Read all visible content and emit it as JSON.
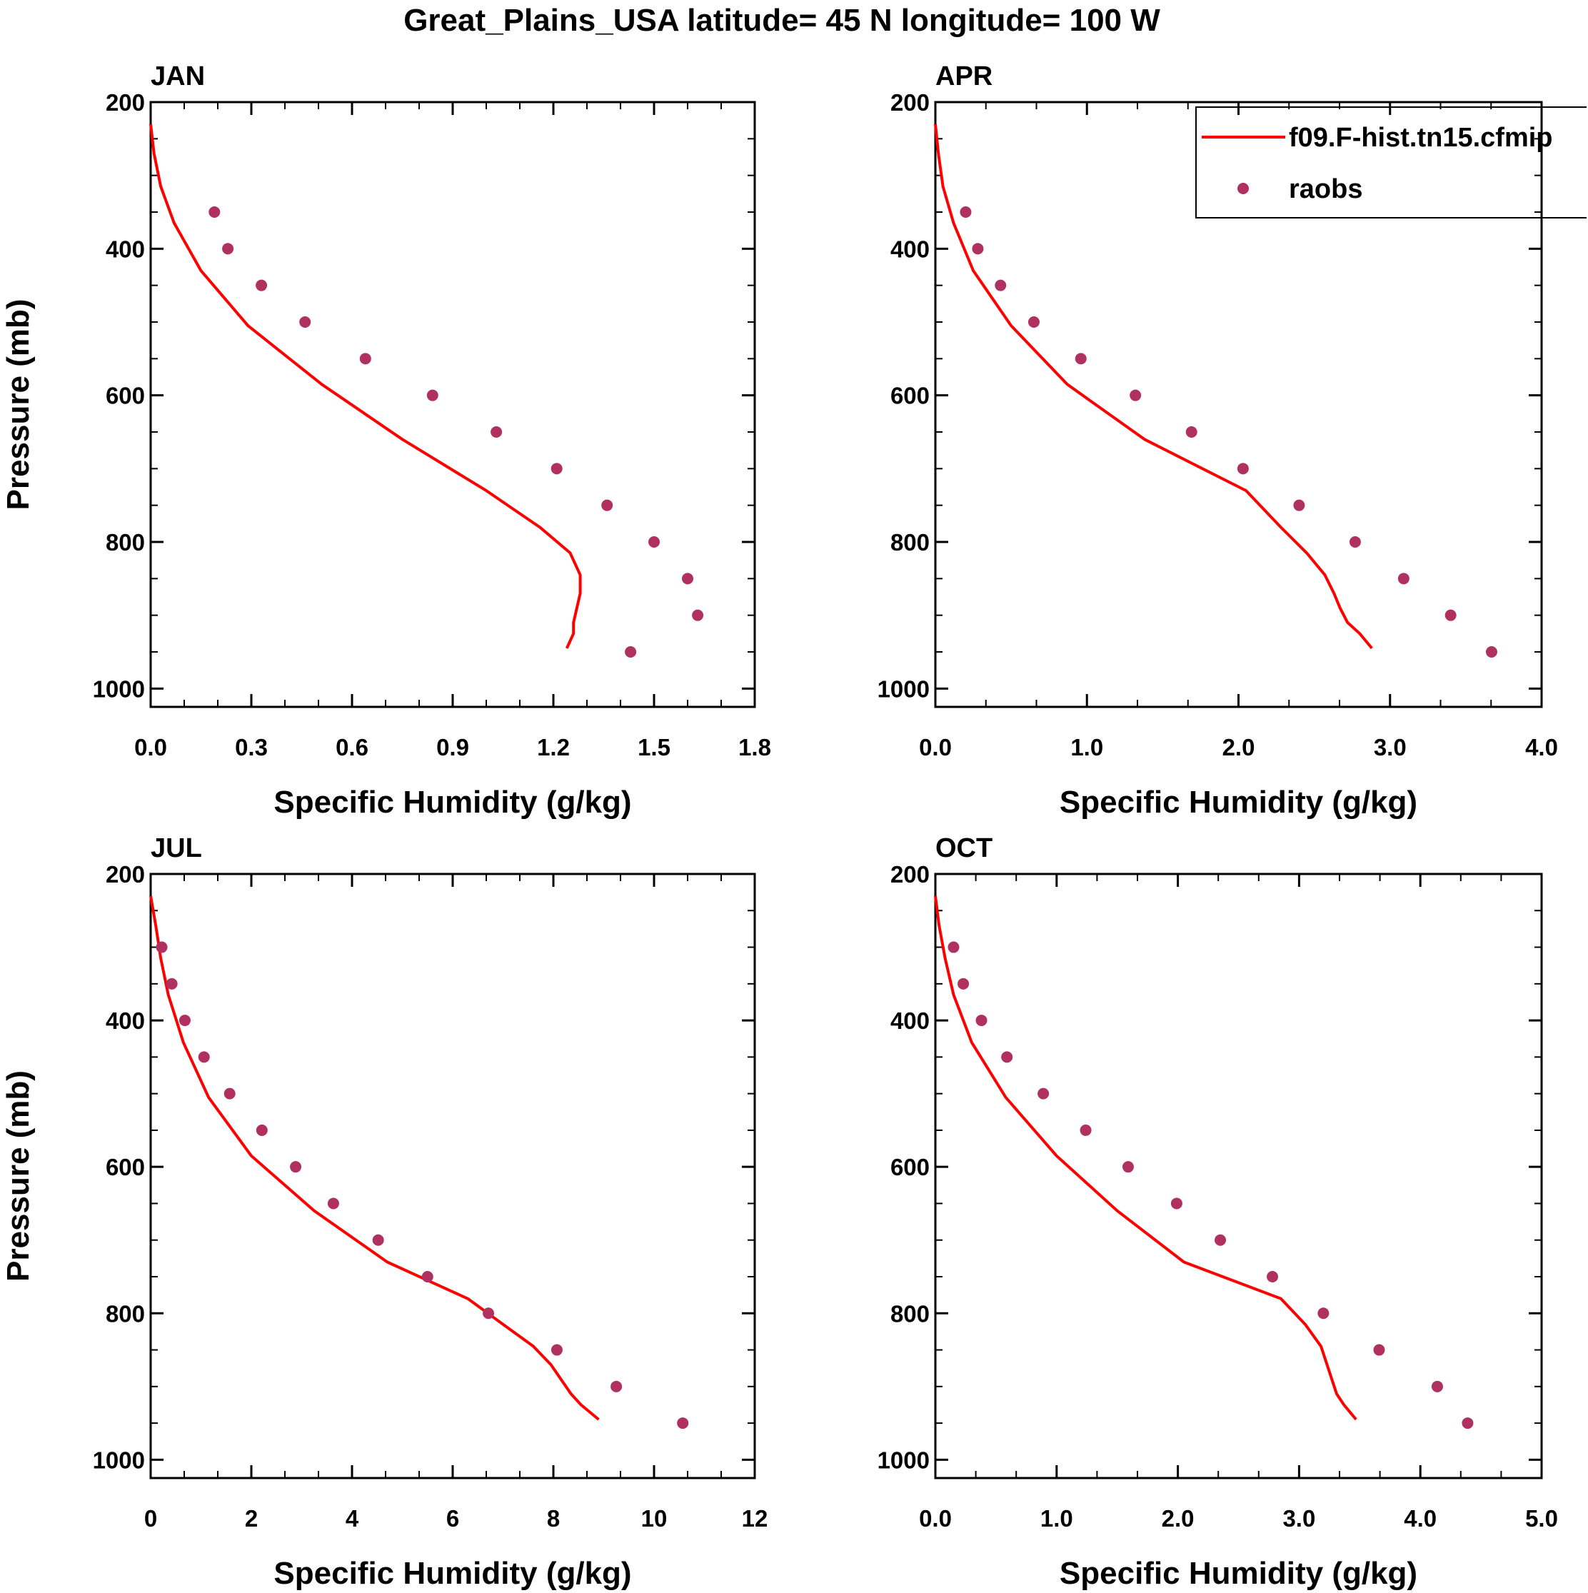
{
  "figure": {
    "title": "Great_Plains_USA  latitude= 45 N longitude= 100 W"
  },
  "legend": {
    "model_label": "f09.F-hist.tn15.cfmip",
    "obs_label": "raobs"
  },
  "colors": {
    "model": "#ff0000",
    "obs": "#b03060",
    "axis": "#000000"
  },
  "chart_data": [
    {
      "type": "line",
      "title": "JAN",
      "xlabel": "Specific Humidity (g/kg)",
      "ylabel": "Pressure (mb)",
      "xlim": [
        0,
        1.8
      ],
      "ylim": [
        1025,
        200
      ],
      "xticks": [
        0,
        0.3,
        0.6,
        0.9,
        1.2,
        1.5,
        1.8
      ],
      "xtick_labels": [
        "0.0",
        "0.3",
        "0.6",
        "0.9",
        "1.2",
        "1.5",
        "1.8"
      ],
      "yticks": [
        200,
        400,
        600,
        800,
        1000
      ],
      "ytick_labels": [
        "200",
        "400",
        "600",
        "800",
        "1000"
      ],
      "legend": false,
      "series": [
        {
          "name": "f09.F-hist.tn15.cfmip",
          "kind": "line",
          "x": [
            0.0,
            0.01,
            0.03,
            0.07,
            0.15,
            0.29,
            0.51,
            0.75,
            1.0,
            1.16,
            1.25,
            1.28,
            1.28,
            1.27,
            1.26,
            1.26,
            1.24
          ],
          "y": [
            230,
            270,
            315,
            365,
            430,
            505,
            585,
            660,
            730,
            780,
            815,
            845,
            870,
            890,
            910,
            925,
            945
          ]
        },
        {
          "name": "raobs",
          "kind": "scatter",
          "x": [
            0.19,
            0.23,
            0.33,
            0.46,
            0.64,
            0.84,
            1.03,
            1.21,
            1.36,
            1.5,
            1.6,
            1.63,
            1.43
          ],
          "y": [
            350,
            400,
            450,
            500,
            550,
            600,
            650,
            700,
            750,
            800,
            850,
            900,
            950
          ]
        }
      ]
    },
    {
      "type": "line",
      "title": "APR",
      "xlabel": "Specific Humidity (g/kg)",
      "ylabel": "",
      "xlim": [
        0,
        4
      ],
      "ylim": [
        1025,
        200
      ],
      "xticks": [
        0,
        1,
        2,
        3,
        4
      ],
      "xtick_labels": [
        "0.0",
        "1.0",
        "2.0",
        "3.0",
        "4.0"
      ],
      "yticks": [
        200,
        400,
        600,
        800,
        1000
      ],
      "ytick_labels": [
        "200",
        "400",
        "600",
        "800",
        "1000"
      ],
      "legend": true,
      "series": [
        {
          "name": "f09.F-hist.tn15.cfmip",
          "kind": "line",
          "x": [
            0.0,
            0.02,
            0.05,
            0.12,
            0.25,
            0.5,
            0.87,
            1.38,
            2.05,
            2.28,
            2.45,
            2.57,
            2.63,
            2.67,
            2.72,
            2.8,
            2.88
          ],
          "y": [
            230,
            270,
            315,
            365,
            430,
            505,
            585,
            660,
            730,
            780,
            815,
            845,
            870,
            890,
            910,
            925,
            945
          ]
        },
        {
          "name": "raobs",
          "kind": "scatter",
          "x": [
            0.2,
            0.28,
            0.43,
            0.65,
            0.96,
            1.32,
            1.69,
            2.03,
            2.4,
            2.77,
            3.09,
            3.4,
            3.67
          ],
          "y": [
            350,
            400,
            450,
            500,
            550,
            600,
            650,
            700,
            750,
            800,
            850,
            900,
            950
          ]
        }
      ]
    },
    {
      "type": "line",
      "title": "JUL",
      "xlabel": "Specific Humidity (g/kg)",
      "ylabel": "Pressure (mb)",
      "xlim": [
        0,
        12
      ],
      "ylim": [
        1025,
        200
      ],
      "xticks": [
        0,
        2,
        4,
        6,
        8,
        10,
        12
      ],
      "xtick_labels": [
        "0",
        "2",
        "4",
        "6",
        "8",
        "10",
        "12"
      ],
      "yticks": [
        200,
        400,
        600,
        800,
        1000
      ],
      "ytick_labels": [
        "200",
        "400",
        "600",
        "800",
        "1000"
      ],
      "legend": false,
      "series": [
        {
          "name": "f09.F-hist.tn15.cfmip",
          "kind": "line",
          "x": [
            0.0,
            0.1,
            0.2,
            0.35,
            0.65,
            1.15,
            2.0,
            3.25,
            4.7,
            6.3,
            7.0,
            7.6,
            7.95,
            8.15,
            8.35,
            8.55,
            8.9
          ],
          "y": [
            230,
            270,
            315,
            365,
            430,
            505,
            585,
            660,
            730,
            780,
            815,
            845,
            870,
            890,
            910,
            925,
            945
          ]
        },
        {
          "name": "raobs",
          "kind": "scatter",
          "x": [
            0.22,
            0.42,
            0.68,
            1.06,
            1.57,
            2.21,
            2.88,
            3.63,
            4.52,
            5.5,
            6.71,
            8.07,
            9.25,
            10.57
          ],
          "y": [
            300,
            350,
            400,
            450,
            500,
            550,
            600,
            650,
            700,
            750,
            800,
            850,
            900,
            950
          ]
        }
      ]
    },
    {
      "type": "line",
      "title": "OCT",
      "xlabel": "Specific Humidity (g/kg)",
      "ylabel": "",
      "xlim": [
        0,
        5
      ],
      "ylim": [
        1025,
        200
      ],
      "xticks": [
        0,
        1,
        2,
        3,
        4,
        5
      ],
      "xtick_labels": [
        "0.0",
        "1.0",
        "2.0",
        "3.0",
        "4.0",
        "5.0"
      ],
      "yticks": [
        200,
        400,
        600,
        800,
        1000
      ],
      "ytick_labels": [
        "200",
        "400",
        "600",
        "800",
        "1000"
      ],
      "legend": false,
      "series": [
        {
          "name": "f09.F-hist.tn15.cfmip",
          "kind": "line",
          "x": [
            0.0,
            0.03,
            0.08,
            0.15,
            0.3,
            0.58,
            1.0,
            1.5,
            2.05,
            2.85,
            3.05,
            3.18,
            3.23,
            3.27,
            3.31,
            3.37,
            3.47
          ],
          "y": [
            230,
            270,
            315,
            365,
            430,
            505,
            585,
            660,
            730,
            780,
            815,
            845,
            870,
            890,
            910,
            925,
            945
          ]
        },
        {
          "name": "raobs",
          "kind": "scatter",
          "x": [
            0.15,
            0.23,
            0.38,
            0.59,
            0.89,
            1.24,
            1.59,
            1.99,
            2.35,
            2.78,
            3.2,
            3.66,
            4.14,
            4.39
          ],
          "y": [
            300,
            350,
            400,
            450,
            500,
            550,
            600,
            650,
            700,
            750,
            800,
            850,
            900,
            950
          ]
        }
      ]
    }
  ]
}
